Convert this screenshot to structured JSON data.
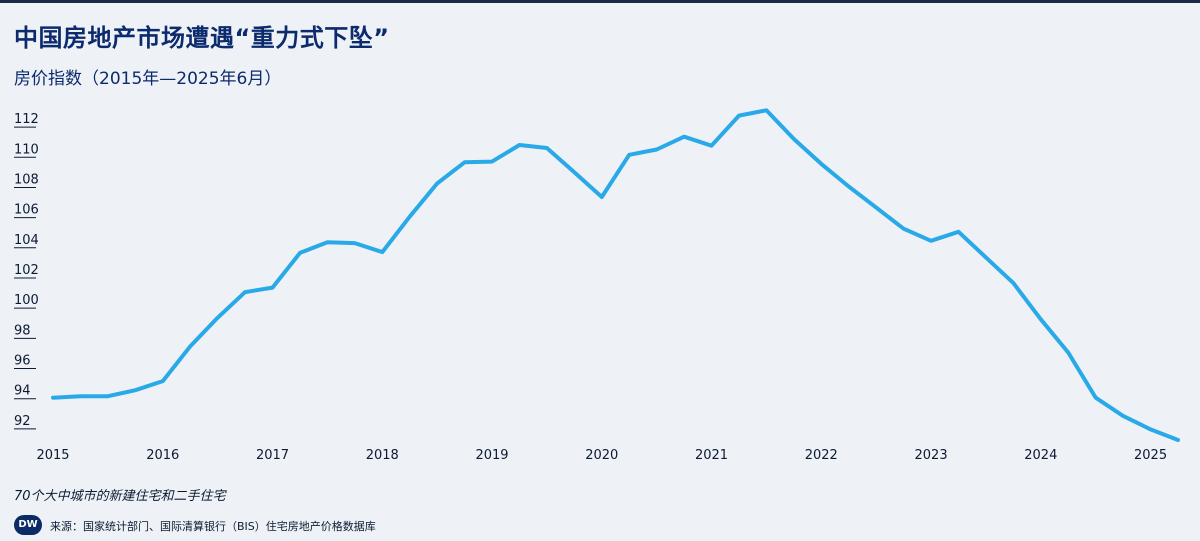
{
  "title": "中国房地产市场遭遇“重力式下坠”",
  "subtitle": "房价指数（2015年—2025年6月）",
  "note": "70个大中城市的新建住宅和二手住宅",
  "source": "来源：国家统计部门、国际清算银行（BIS）住宅房地产价格数据库",
  "logo_text": "DW",
  "colors": {
    "line": "#29a9e8",
    "background": "#eef2f6",
    "title": "#0c2a6e",
    "axis": "#0c1a33"
  },
  "chart_data": {
    "type": "line",
    "title": "中国房地产市场遭遇“重力式下坠”",
    "subtitle": "房价指数（2015年—2025年6月）",
    "xlabel": "",
    "ylabel": "",
    "xlim": [
      2015,
      2025.25
    ],
    "ylim": [
      90.8,
      113
    ],
    "yticks": [
      92,
      94,
      96,
      98,
      100,
      102,
      104,
      106,
      108,
      110,
      112
    ],
    "xticks": [
      2015,
      2016,
      2017,
      2018,
      2019,
      2020,
      2021,
      2022,
      2023,
      2024,
      2025
    ],
    "grid": false,
    "series": [
      {
        "x": [
          2015.0,
          2015.25,
          2015.5,
          2015.75,
          2016.0,
          2016.25,
          2016.5,
          2016.75,
          2017.0,
          2017.25,
          2017.5,
          2017.75,
          2018.0,
          2018.25,
          2018.5,
          2018.75,
          2019.0,
          2019.25,
          2019.5,
          2019.75,
          2020.0,
          2020.25,
          2020.5,
          2020.75,
          2021.0,
          2021.25,
          2021.5,
          2021.75,
          2022.0,
          2022.25,
          2022.5,
          2022.75,
          2023.0,
          2023.25,
          2023.5,
          2023.75,
          2024.0,
          2024.25,
          2024.5,
          2024.75,
          2025.0,
          2025.25
        ],
        "values": [
          93.6,
          93.7,
          93.7,
          94.1,
          94.7,
          97.0,
          98.9,
          100.6,
          100.9,
          103.2,
          103.9,
          103.85,
          103.25,
          105.6,
          107.8,
          109.2,
          109.25,
          110.35,
          110.15,
          108.55,
          106.9,
          109.7,
          110.05,
          110.9,
          110.3,
          112.3,
          112.65,
          110.75,
          109.1,
          107.6,
          106.2,
          104.8,
          104.0,
          104.6,
          102.9,
          101.2,
          98.8,
          96.6,
          93.6,
          92.4,
          91.5,
          90.8
        ]
      }
    ]
  }
}
